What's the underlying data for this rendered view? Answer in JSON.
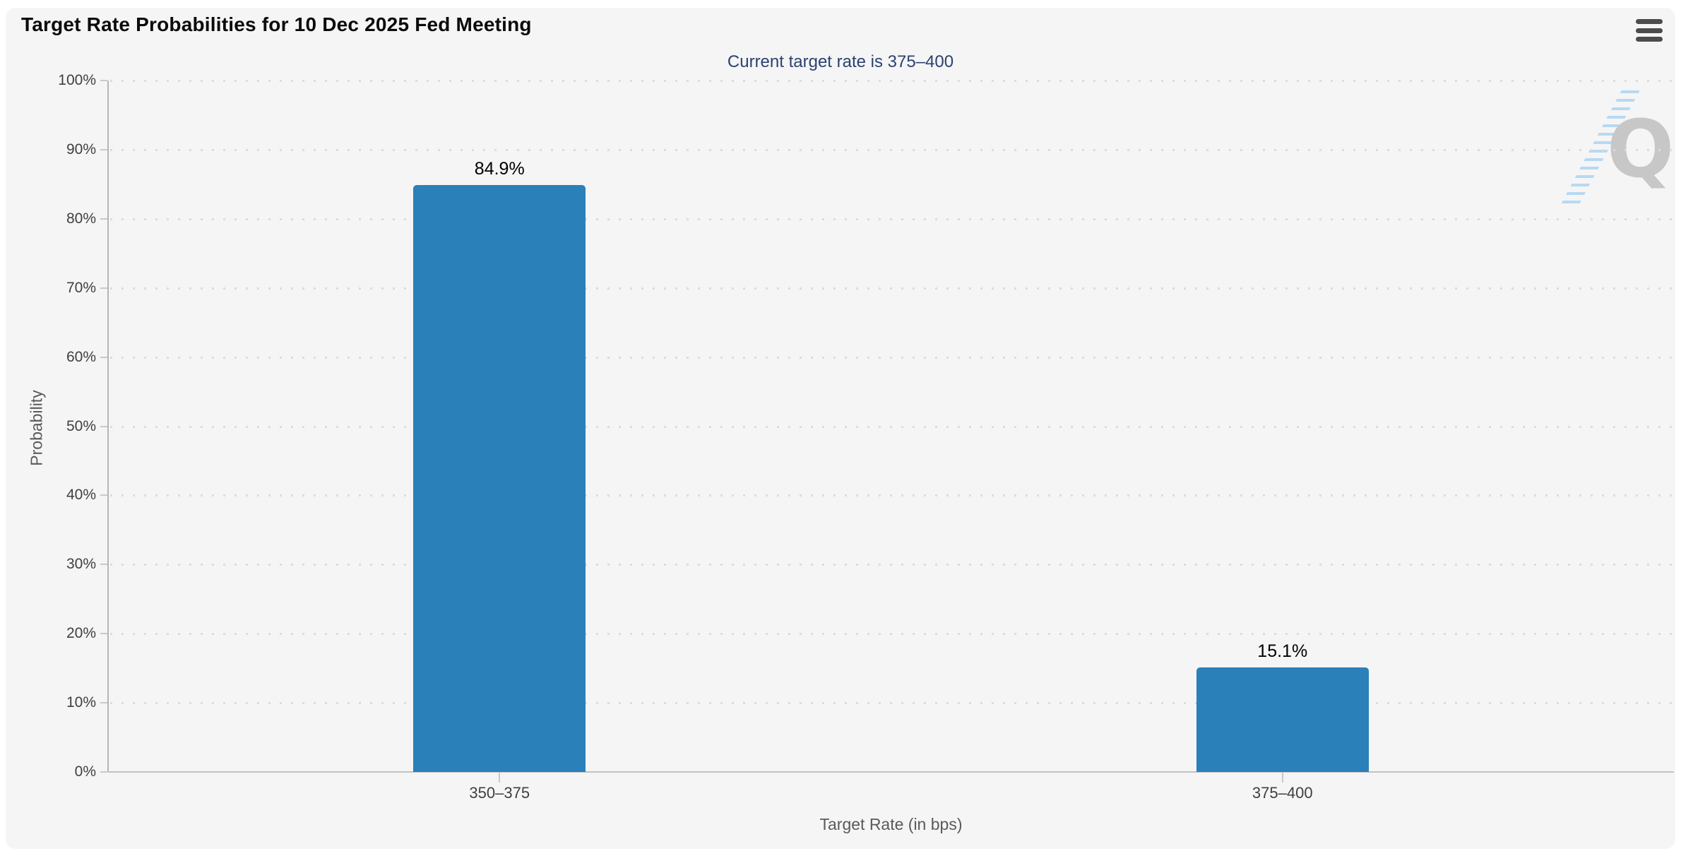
{
  "header": {
    "title": "Target Rate Probabilities for 10 Dec 2025 Fed Meeting",
    "subtitle": "Current target rate is 375–400"
  },
  "menu": {
    "icon": "hamburger-icon"
  },
  "watermark": {
    "letter": "Q"
  },
  "chart_data": {
    "type": "bar",
    "title": "Target Rate Probabilities for 10 Dec 2025 Fed Meeting",
    "subtitle": "Current target rate is 375–400",
    "categories": [
      "350–375",
      "375–400"
    ],
    "values": [
      84.9,
      15.1
    ],
    "value_labels": [
      "84.9%",
      "15.1%"
    ],
    "xlabel": "Target Rate (in bps)",
    "ylabel": "Probability",
    "ylim": [
      0,
      100
    ],
    "ytick_step": 10,
    "ytick_labels": [
      "0%",
      "10%",
      "20%",
      "30%",
      "40%",
      "50%",
      "60%",
      "70%",
      "80%",
      "90%",
      "100%"
    ],
    "grid": "horizontal-dotted",
    "legend": "none",
    "bar_color": "#2a80b9"
  },
  "colors": {
    "card_background": "#f5f5f6",
    "page_background": "#ffffff",
    "bar": "#2a80b9",
    "subtitle_text": "#2c4270",
    "axis_text": "#3f3f3f",
    "axis_line": "#b6b6b6",
    "gridline": "#dcdcdc",
    "watermark_gray": "#c7c7c7",
    "watermark_blue": "#b0d6f1"
  }
}
